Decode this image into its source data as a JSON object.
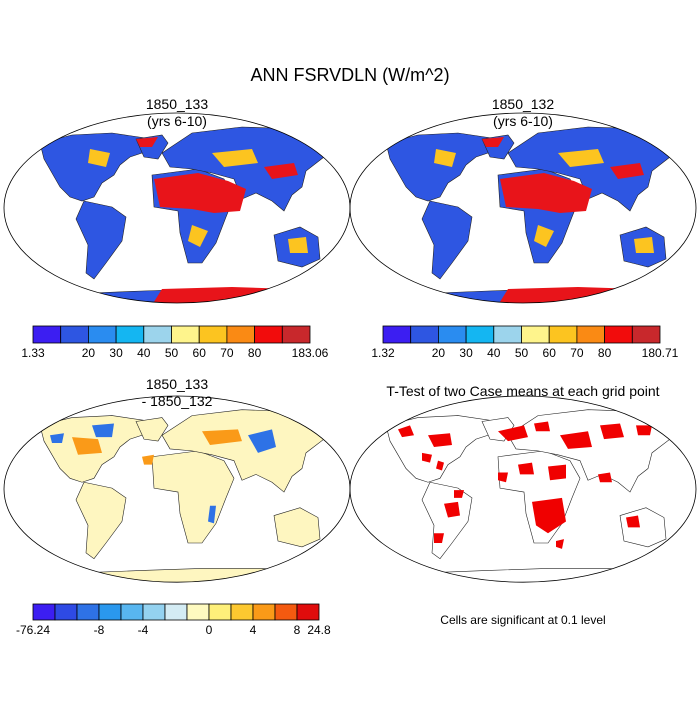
{
  "title": "ANN FSRVDLN (W/m^2)",
  "panels": [
    {
      "title": "1850_133",
      "subtitle": "(yrs 6-10)",
      "colorbar": {
        "labels": [
          1.33,
          20,
          30,
          40,
          50,
          60,
          70,
          80,
          183.06
        ],
        "colors": [
          "#3c1ef2",
          "#2e56e2",
          "#2a8cf0",
          "#14b6f2",
          "#9cd4ec",
          "#fef48c",
          "#fcc420",
          "#fa8a14",
          "#f20c0c",
          "#c8282c"
        ]
      }
    },
    {
      "title": "1850_132",
      "subtitle": "(yrs 6-10)",
      "colorbar": {
        "labels": [
          1.32,
          20,
          30,
          40,
          50,
          60,
          70,
          80,
          180.71
        ],
        "colors": [
          "#3c1ef2",
          "#2e56e2",
          "#2a8cf0",
          "#14b6f2",
          "#9cd4ec",
          "#fef48c",
          "#fcc420",
          "#fa8a14",
          "#f20c0c",
          "#c8282c"
        ]
      }
    },
    {
      "title": "1850_133",
      "subtitle": "- 1850_132",
      "colorbar": {
        "labels": [
          -76.24,
          -8,
          -4,
          0,
          4,
          8,
          24.8
        ],
        "colors": [
          "#3c1ef2",
          "#2e4ae4",
          "#2e72e6",
          "#2a98ee",
          "#58b6f0",
          "#94d2f0",
          "#d4ecf4",
          "#fefac0",
          "#fef07a",
          "#fcc830",
          "#fa9a18",
          "#f45a10",
          "#e00c0c"
        ]
      }
    },
    {
      "title": "T-Test of two Case means at each grid point",
      "note": "Cells are significant at 0.1 level"
    }
  ]
}
